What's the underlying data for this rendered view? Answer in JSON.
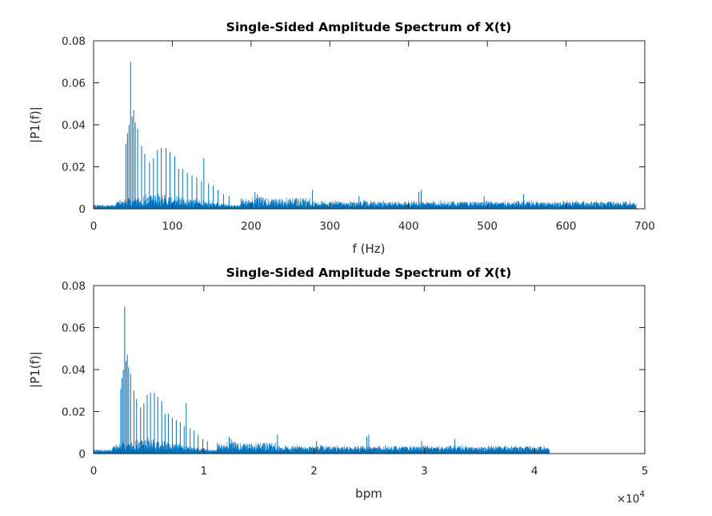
{
  "chart_data": [
    {
      "type": "line",
      "title": "Single-Sided Amplitude Spectrum of X(t)",
      "xlabel": "f (Hz)",
      "ylabel": "|P1(f)|",
      "xlim": [
        0,
        700
      ],
      "ylim": [
        0,
        0.08
      ],
      "xticks": [
        "0",
        "100",
        "200",
        "300",
        "400",
        "500",
        "600",
        "700"
      ],
      "yticks": [
        "0",
        "0.02",
        "0.04",
        "0.06",
        "0.08"
      ],
      "x_exponent_label": "",
      "grid": false,
      "color": "#0072BD",
      "x_end": 689,
      "peaks": [
        {
          "x": 41,
          "y": 0.031
        },
        {
          "x": 43,
          "y": 0.036
        },
        {
          "x": 45,
          "y": 0.04
        },
        {
          "x": 47,
          "y": 0.07
        },
        {
          "x": 49,
          "y": 0.044
        },
        {
          "x": 51,
          "y": 0.047
        },
        {
          "x": 53,
          "y": 0.041
        },
        {
          "x": 56,
          "y": 0.038
        },
        {
          "x": 61,
          "y": 0.03
        },
        {
          "x": 65,
          "y": 0.026
        },
        {
          "x": 71,
          "y": 0.022
        },
        {
          "x": 76,
          "y": 0.024
        },
        {
          "x": 81,
          "y": 0.028
        },
        {
          "x": 86,
          "y": 0.029
        },
        {
          "x": 92,
          "y": 0.029
        },
        {
          "x": 97,
          "y": 0.027
        },
        {
          "x": 103,
          "y": 0.025
        },
        {
          "x": 108,
          "y": 0.019
        },
        {
          "x": 113,
          "y": 0.019
        },
        {
          "x": 119,
          "y": 0.017
        },
        {
          "x": 125,
          "y": 0.016
        },
        {
          "x": 131,
          "y": 0.015
        },
        {
          "x": 137,
          "y": 0.013
        },
        {
          "x": 140,
          "y": 0.024
        },
        {
          "x": 146,
          "y": 0.012
        },
        {
          "x": 152,
          "y": 0.011
        },
        {
          "x": 158,
          "y": 0.009
        },
        {
          "x": 165,
          "y": 0.007
        },
        {
          "x": 172,
          "y": 0.006
        },
        {
          "x": 205,
          "y": 0.008
        },
        {
          "x": 208,
          "y": 0.007
        },
        {
          "x": 278,
          "y": 0.009
        },
        {
          "x": 337,
          "y": 0.006
        },
        {
          "x": 413,
          "y": 0.008
        },
        {
          "x": 416,
          "y": 0.009
        },
        {
          "x": 496,
          "y": 0.006
        },
        {
          "x": 546,
          "y": 0.007
        }
      ]
    },
    {
      "type": "line",
      "title": "Single-Sided Amplitude Spectrum of X(t)",
      "xlabel": "bpm",
      "ylabel": "|P1(f)|",
      "xlim": [
        0,
        50000
      ],
      "ylim": [
        0,
        0.08
      ],
      "xticks": [
        "0",
        "1",
        "2",
        "3",
        "4",
        "5"
      ],
      "yticks": [
        "0",
        "0.02",
        "0.04",
        "0.06",
        "0.08"
      ],
      "x_exponent_label": "×10",
      "x_exponent_power": "4",
      "grid": false,
      "color": "#0072BD",
      "x_end": 41340,
      "peaks": [
        {
          "x": 2460,
          "y": 0.031
        },
        {
          "x": 2580,
          "y": 0.036
        },
        {
          "x": 2700,
          "y": 0.04
        },
        {
          "x": 2820,
          "y": 0.07
        },
        {
          "x": 2940,
          "y": 0.044
        },
        {
          "x": 3060,
          "y": 0.047
        },
        {
          "x": 3180,
          "y": 0.041
        },
        {
          "x": 3360,
          "y": 0.038
        },
        {
          "x": 3660,
          "y": 0.03
        },
        {
          "x": 3900,
          "y": 0.026
        },
        {
          "x": 4260,
          "y": 0.022
        },
        {
          "x": 4560,
          "y": 0.024
        },
        {
          "x": 4860,
          "y": 0.028
        },
        {
          "x": 5160,
          "y": 0.029
        },
        {
          "x": 5520,
          "y": 0.029
        },
        {
          "x": 5820,
          "y": 0.027
        },
        {
          "x": 6180,
          "y": 0.025
        },
        {
          "x": 6480,
          "y": 0.019
        },
        {
          "x": 6780,
          "y": 0.019
        },
        {
          "x": 7140,
          "y": 0.017
        },
        {
          "x": 7500,
          "y": 0.016
        },
        {
          "x": 7860,
          "y": 0.015
        },
        {
          "x": 8220,
          "y": 0.013
        },
        {
          "x": 8400,
          "y": 0.024
        },
        {
          "x": 8760,
          "y": 0.012
        },
        {
          "x": 9120,
          "y": 0.011
        },
        {
          "x": 9480,
          "y": 0.009
        },
        {
          "x": 9900,
          "y": 0.007
        },
        {
          "x": 10320,
          "y": 0.006
        },
        {
          "x": 12300,
          "y": 0.008
        },
        {
          "x": 12480,
          "y": 0.007
        },
        {
          "x": 16680,
          "y": 0.009
        },
        {
          "x": 20220,
          "y": 0.006
        },
        {
          "x": 24780,
          "y": 0.008
        },
        {
          "x": 24960,
          "y": 0.009
        },
        {
          "x": 29760,
          "y": 0.006
        },
        {
          "x": 32760,
          "y": 0.007
        }
      ]
    }
  ]
}
